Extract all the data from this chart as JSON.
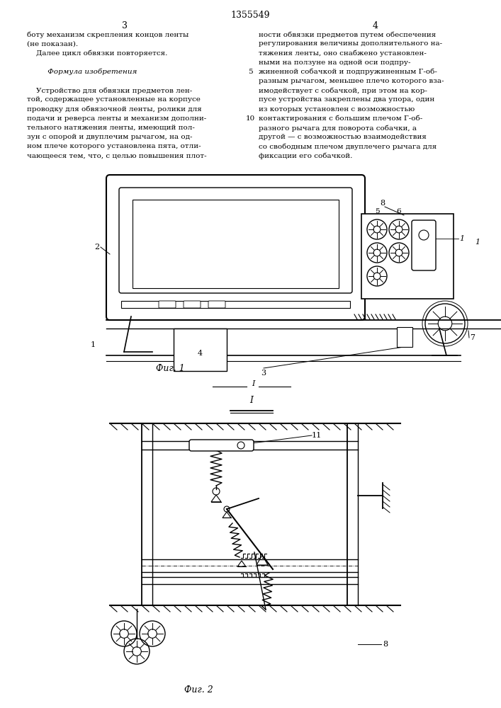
{
  "page_number": "1355549",
  "col_left": "3",
  "col_right": "4",
  "text_left_lines": [
    "боту механизм скрепления концов ленты",
    "(не показан).",
    "    Далее цикл обвязки повторяется.",
    "",
    "         Формула изобретения",
    "",
    "    Устройство для обвязки предметов лен-",
    "той, содержащее установленные на корпусе",
    "проводку для обвязочной ленты, ролики для",
    "подачи и реверса ленты и механизм дополни-",
    "тельного натяжения ленты, имеющий пол-",
    "зун с опорой и двуплечим рычагом, на од-",
    "ном плече которого установлена пята, отли-",
    "чающееся тем, что, с целью повышения плот-"
  ],
  "text_right_lines": [
    "ности обвязки предметов путем обеспечения",
    "регулирования величины дополнительного на-",
    "тяжения ленты, оно снабжено установлен-",
    "ными на ползуне на одной оси подпру-",
    "жиненной собачкой и подпружиненным Г-об-",
    "разным рычагом, меньшее плечо которого вза-",
    "имодействует с собачкой, при этом на кор-",
    "пусе устройства закреплены два упора, один",
    "из которых установлен с возможностью",
    "контактирования с большим плечом Г-об-",
    "разного рычага для поворота собачки, а",
    "другой — с возможностью взаимодействия",
    "со свободным плечом двуплечего рычага для",
    "фиксации его собачкой."
  ],
  "fig1_label": "Фиг. 1",
  "fig2_label": "Фиг. 2",
  "label_1": "1",
  "label_2": "2",
  "label_3": "3",
  "label_4": "4",
  "label_5": "5",
  "label_6": "6",
  "label_7": "7",
  "label_8": "8",
  "label_11": "11",
  "bg_color": "#ffffff",
  "line_color": "#000000",
  "text_color": "#000000"
}
